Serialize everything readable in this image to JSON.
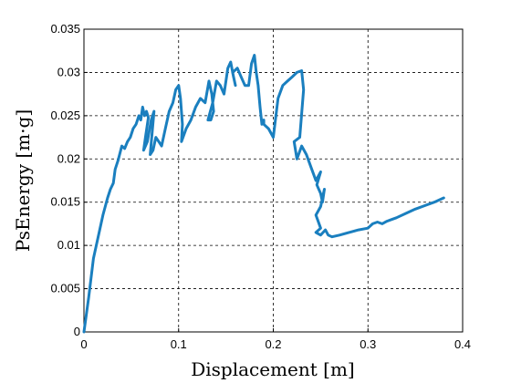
{
  "chart_data": {
    "type": "line",
    "title": "",
    "xlabel": "Displacement [m]",
    "ylabel": "PsEnergy [m·g]",
    "xlim": [
      0,
      0.4
    ],
    "ylim": [
      0,
      0.035
    ],
    "xticks": [
      0,
      0.1,
      0.2,
      0.3,
      0.4
    ],
    "xtick_labels": [
      "0",
      "0.1",
      "0.2",
      "0.3",
      "0.4"
    ],
    "yticks": [
      0,
      0.005,
      0.01,
      0.015,
      0.02,
      0.025,
      0.03,
      0.035
    ],
    "ytick_labels": [
      "0",
      "0.005",
      "0.01",
      "0.015",
      "0.02",
      "0.025",
      "0.03",
      "0.035"
    ],
    "grid": true,
    "series": [
      {
        "color": "#1a7fbf",
        "x": [
          0.0,
          0.005,
          0.01,
          0.015,
          0.02,
          0.025,
          0.028,
          0.031,
          0.033,
          0.036,
          0.04,
          0.043,
          0.046,
          0.049,
          0.052,
          0.055,
          0.058,
          0.06,
          0.062,
          0.064,
          0.066,
          0.068,
          0.065,
          0.063,
          0.067,
          0.071,
          0.074,
          0.072,
          0.07,
          0.073,
          0.076,
          0.079,
          0.082,
          0.086,
          0.09,
          0.094,
          0.097,
          0.1,
          0.102,
          0.104,
          0.103,
          0.108,
          0.113,
          0.118,
          0.123,
          0.128,
          0.132,
          0.135,
          0.137,
          0.134,
          0.131,
          0.136,
          0.14,
          0.144,
          0.148,
          0.152,
          0.155,
          0.158,
          0.16,
          0.157,
          0.162,
          0.166,
          0.17,
          0.174,
          0.177,
          0.18,
          0.182,
          0.184,
          0.186,
          0.188,
          0.19,
          0.19,
          0.195,
          0.2,
          0.205,
          0.21,
          0.215,
          0.22,
          0.225,
          0.23,
          0.232,
          0.228,
          0.222,
          0.225,
          0.23,
          0.235,
          0.24,
          0.245,
          0.25,
          0.246,
          0.25,
          0.252,
          0.254,
          0.25,
          0.245,
          0.25,
          0.245,
          0.25,
          0.255,
          0.258,
          0.262,
          0.27,
          0.28,
          0.29,
          0.3,
          0.305,
          0.31,
          0.315,
          0.32,
          0.325,
          0.33,
          0.34,
          0.35,
          0.36,
          0.37,
          0.38
        ],
        "y": [
          0.0,
          0.004,
          0.0085,
          0.011,
          0.0135,
          0.0155,
          0.0165,
          0.0172,
          0.0188,
          0.0198,
          0.0215,
          0.0212,
          0.022,
          0.0225,
          0.0235,
          0.024,
          0.025,
          0.0245,
          0.026,
          0.025,
          0.0255,
          0.0248,
          0.0225,
          0.021,
          0.022,
          0.0245,
          0.0255,
          0.023,
          0.0205,
          0.021,
          0.0225,
          0.022,
          0.0215,
          0.0235,
          0.0255,
          0.0265,
          0.028,
          0.0285,
          0.027,
          0.024,
          0.022,
          0.0235,
          0.0245,
          0.026,
          0.027,
          0.0265,
          0.029,
          0.0275,
          0.0255,
          0.0245,
          0.0245,
          0.0265,
          0.029,
          0.0285,
          0.0275,
          0.0305,
          0.0312,
          0.0295,
          0.0285,
          0.03,
          0.0305,
          0.0295,
          0.0285,
          0.0285,
          0.031,
          0.032,
          0.03,
          0.0285,
          0.026,
          0.024,
          0.0245,
          0.024,
          0.0235,
          0.0225,
          0.027,
          0.0285,
          0.029,
          0.0295,
          0.03,
          0.0302,
          0.028,
          0.0225,
          0.022,
          0.02,
          0.0215,
          0.0205,
          0.019,
          0.0175,
          0.0185,
          0.017,
          0.016,
          0.015,
          0.0165,
          0.0145,
          0.0135,
          0.012,
          0.0115,
          0.0112,
          0.0118,
          0.0112,
          0.011,
          0.0112,
          0.0115,
          0.0118,
          0.012,
          0.0125,
          0.0127,
          0.0125,
          0.0128,
          0.013,
          0.0132,
          0.0137,
          0.0142,
          0.0146,
          0.015,
          0.0155
        ]
      }
    ]
  }
}
